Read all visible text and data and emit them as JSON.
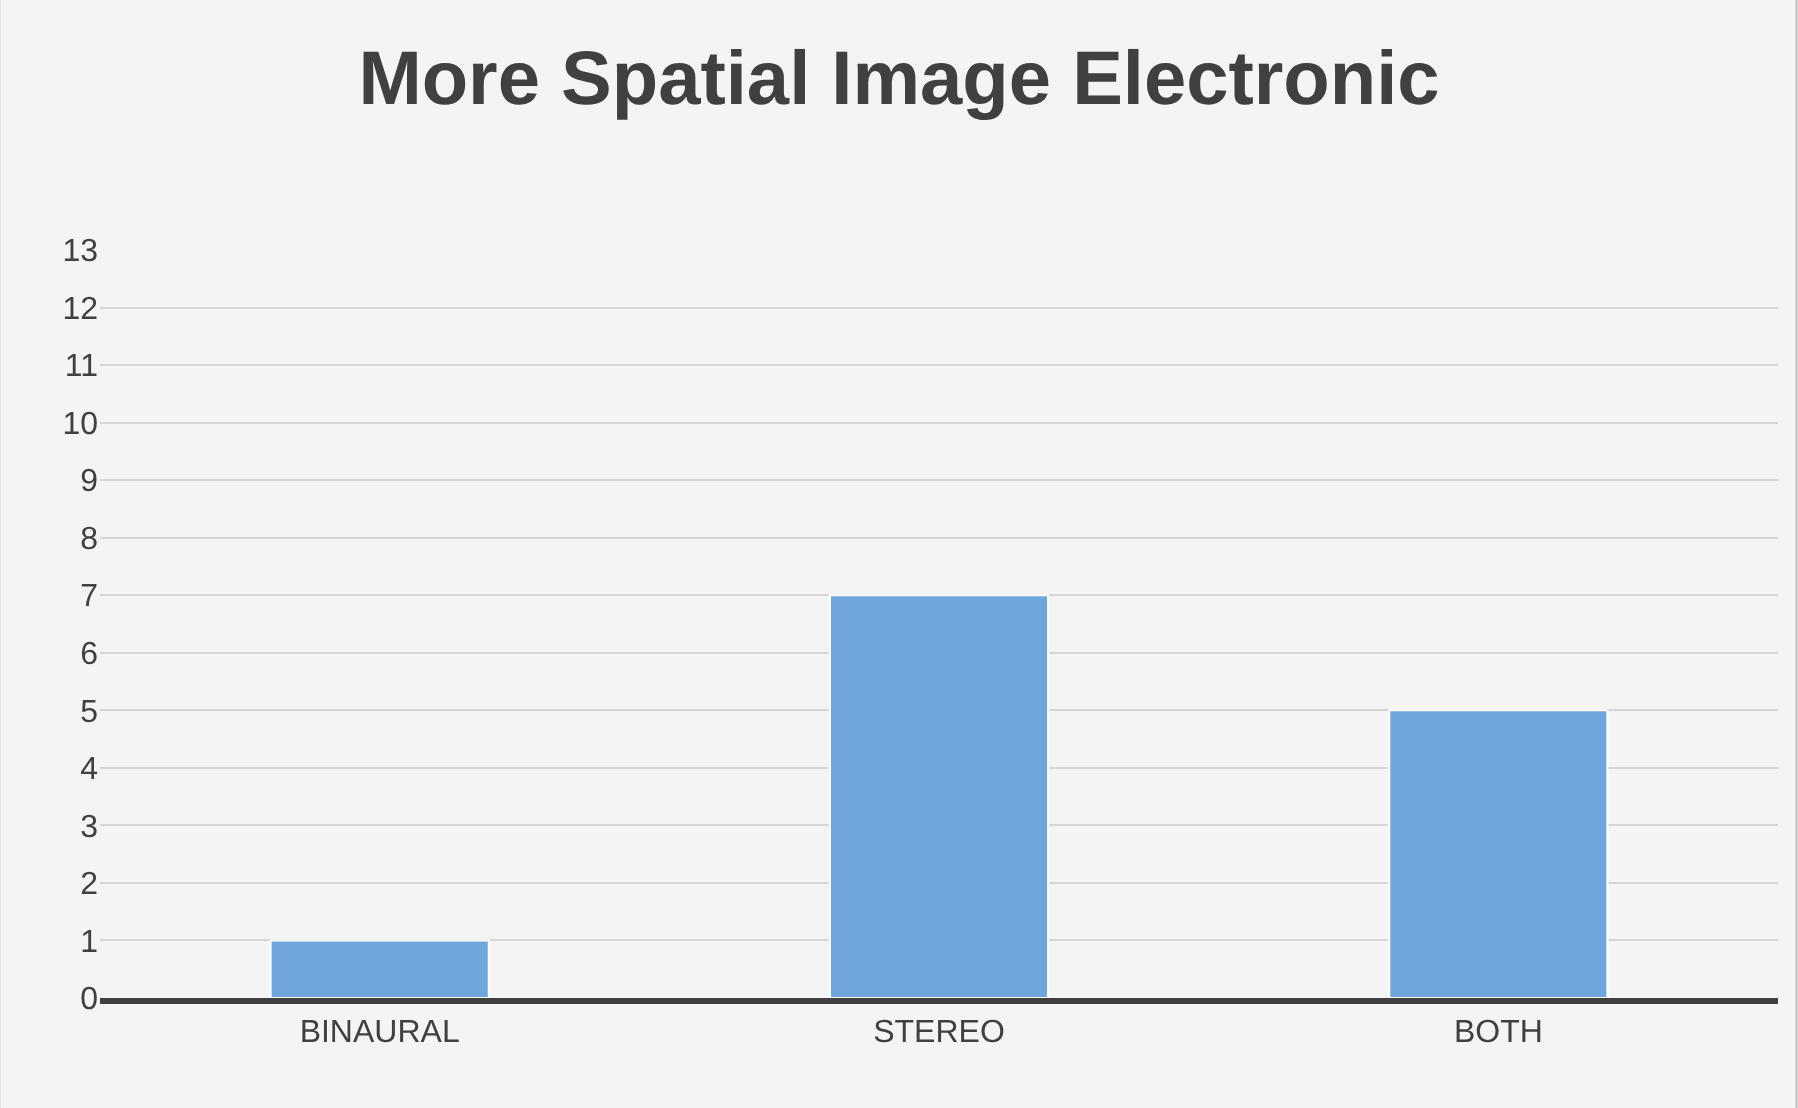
{
  "chart_data": {
    "type": "bar",
    "title": "More Spatial Image Electronic",
    "categories": [
      "BINAURAL",
      "STEREO",
      "BOTH"
    ],
    "values": [
      1,
      7,
      5
    ],
    "color": "#6fa6dc",
    "ylim": [
      0,
      13
    ],
    "yticks": [
      0,
      1,
      2,
      3,
      4,
      5,
      6,
      7,
      8,
      9,
      10,
      11,
      12,
      13
    ],
    "grid": "y"
  }
}
